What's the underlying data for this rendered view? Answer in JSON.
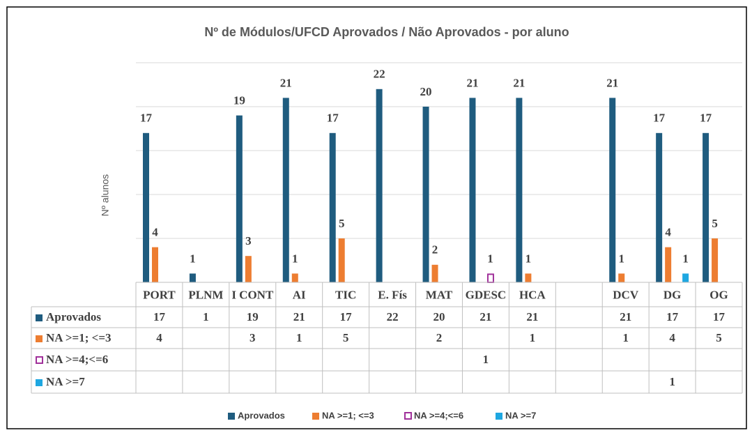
{
  "chart_data": {
    "type": "bar",
    "title": "Nº de Módulos/UFCD Aprovados / Não Aprovados - por aluno",
    "y_label": "Nº alunos",
    "categories": [
      "PORT",
      "PLNM",
      "I CONT",
      "AI",
      "TIC",
      "E. Fís",
      "MAT",
      "GDESC",
      "HCA",
      null,
      "DCV",
      "DG",
      "OG"
    ],
    "series": [
      {
        "name": "Aprovados",
        "color": "#1f5c7f",
        "values": [
          17,
          1,
          19,
          21,
          17,
          22,
          20,
          21,
          21,
          null,
          21,
          17,
          17
        ]
      },
      {
        "name": "NA >=1; <=3",
        "color": "#ed7d31",
        "values": [
          4,
          null,
          3,
          1,
          5,
          null,
          2,
          null,
          1,
          null,
          1,
          4,
          5
        ]
      },
      {
        "name": "NA >=4;<=6",
        "color": "#a0309a",
        "hollow": true,
        "values": [
          null,
          null,
          null,
          null,
          null,
          null,
          null,
          1,
          null,
          null,
          null,
          null,
          null
        ]
      },
      {
        "name": "NA >=7",
        "color": "#1ea7e1",
        "values": [
          null,
          null,
          null,
          null,
          null,
          null,
          null,
          null,
          null,
          null,
          null,
          1,
          null
        ]
      }
    ],
    "ylim": [
      0,
      25
    ],
    "yticks": [
      0,
      5,
      10,
      15,
      20,
      25
    ],
    "grid": true,
    "legend": "bottom",
    "data_table": true
  }
}
